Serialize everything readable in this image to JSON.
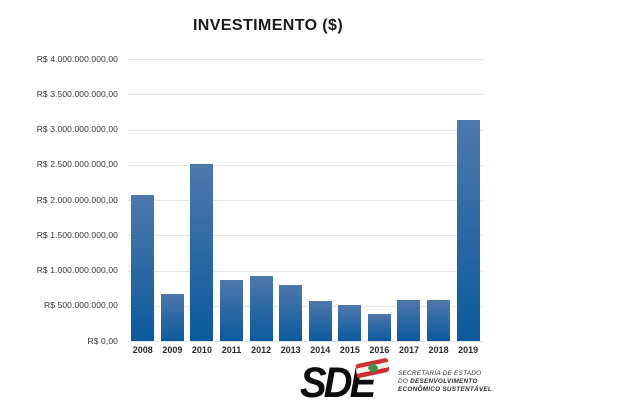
{
  "chart_data": {
    "type": "bar",
    "title": "INVESTIMENTO ($)",
    "xlabel": "",
    "ylabel": "",
    "categories": [
      "2008",
      "2009",
      "2010",
      "2011",
      "2012",
      "2013",
      "2014",
      "2015",
      "2016",
      "2017",
      "2018",
      "2019"
    ],
    "values": [
      2070000000,
      670000000,
      2510000000,
      860000000,
      920000000,
      790000000,
      570000000,
      505000000,
      380000000,
      580000000,
      580000000,
      3140000000
    ],
    "ylim": [
      0,
      4000000000
    ],
    "ytick_step": 500000000,
    "ytick_labels_top_to_bottom": [
      "R$ 4.000.000.000,00",
      "R$ 3.500.000.000,00",
      "R$ 3.000.000.000,00",
      "R$ 2.500.000.000,00",
      "R$ 2.000.000.000,00",
      "R$ 1.500.000.000,00",
      "R$ 1.000.000.000,00",
      "R$ 500.000.000,00",
      "R$ 0,00"
    ],
    "grid": true,
    "legend": false,
    "bar_gradient_top": "#4e78ac",
    "bar_gradient_bottom": "#0b5a9d"
  },
  "logo": {
    "acronym": "SDE",
    "org_line1": "SECRETARIA DE ESTADO",
    "org_line2_prefix": "DO ",
    "org_line2_bold": "DESENVOLVIMENTO",
    "org_line3": "ECONÔMICO SUSTENTÁVEL",
    "flag_red": "#cf2e33",
    "flag_green": "#3f9143"
  }
}
